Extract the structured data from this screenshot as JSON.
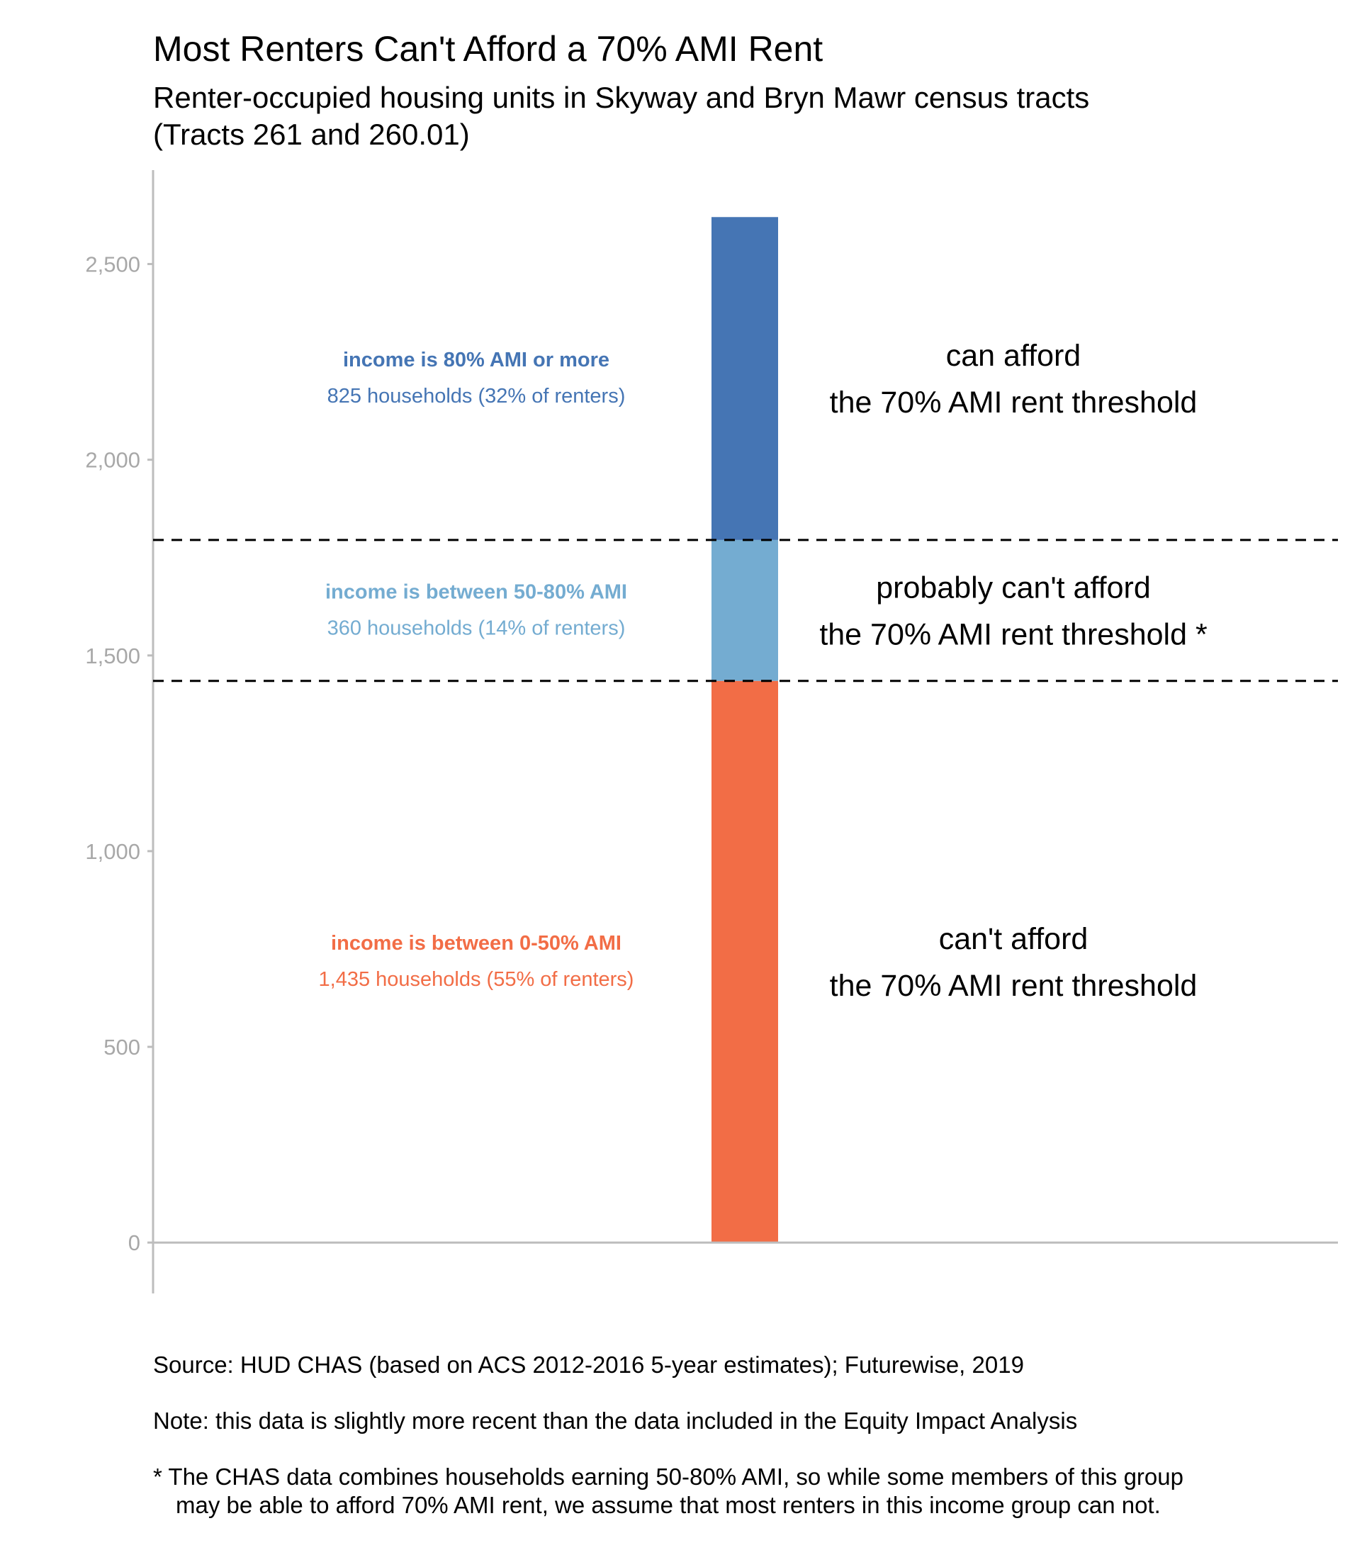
{
  "chart_data": {
    "type": "bar",
    "title": "Most Renters Can't Afford a 70% AMI Rent",
    "subtitle": "Renter-occupied housing units in Skyway and Bryn Mawr census tracts (Tracts 261 and 260.01)",
    "subtitle_lines": [
      "Renter-occupied housing units in Skyway and Bryn Mawr census tracts",
      "(Tracts 261 and 260.01)"
    ],
    "stacked": true,
    "xlabel": "",
    "ylabel": "",
    "ylim": [
      -130,
      2740
    ],
    "yticks": [
      0,
      500,
      1000,
      1500,
      2000,
      2500
    ],
    "ytick_labels": [
      "0",
      "500",
      "1,000",
      "1,500",
      "2,000",
      "2,500"
    ],
    "thresholds": [
      1435,
      1795
    ],
    "series": [
      {
        "name": "income is between 0-50% AMI",
        "value": 1435,
        "color": "#F26D46",
        "label_title": "income is between 0-50% AMI",
        "label_detail": "1,435 households (55% of renters)",
        "afford": [
          "can't afford",
          "the 70% AMI rent threshold"
        ]
      },
      {
        "name": "income is between 50-80% AMI",
        "value": 360,
        "color": "#74ACD1",
        "label_title": "income is between 50-80% AMI",
        "label_detail": "360 households (14% of renters)",
        "afford": [
          "probably can't afford",
          "the 70% AMI rent threshold *"
        ]
      },
      {
        "name": "income is 80% AMI or more",
        "value": 825,
        "color": "#4575B4",
        "label_title": "income is 80% AMI or more",
        "label_detail": "825 households (32% of renters)",
        "afford": [
          "can afford",
          "the 70% AMI rent threshold"
        ]
      }
    ]
  },
  "footer": {
    "source": "Source: HUD CHAS (based on ACS 2012-2016 5-year estimates); Futurewise, 2019",
    "note": "Note: this data is slightly more recent than the data included in the Equity Impact Analysis",
    "asterisk_line1": "* The CHAS data combines households earning 50-80% AMI, so while some members of this group",
    "asterisk_line2": "may be able to afford 70% AMI rent, we assume that most renters in this income group can not."
  }
}
